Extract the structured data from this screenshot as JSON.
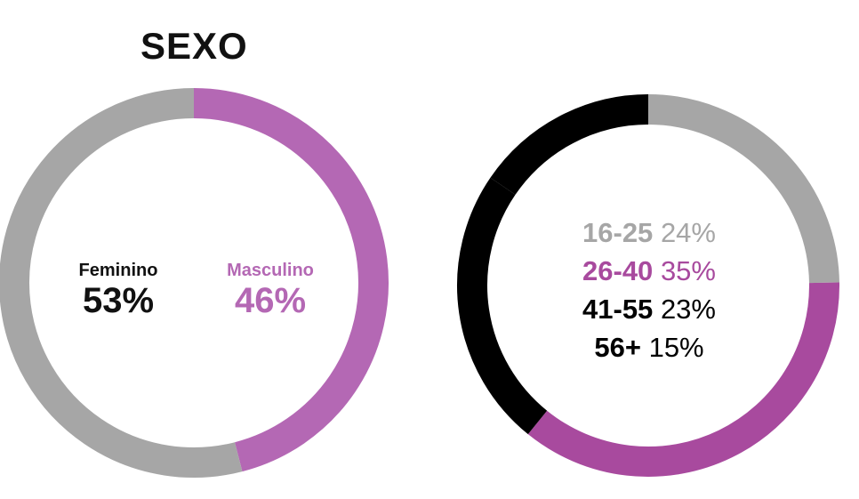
{
  "colors": {
    "gray": "#a6a6a6",
    "purple": "#b468b4",
    "purple_dark": "#a84a9e",
    "black": "#000000"
  },
  "chart_data": [
    {
      "type": "pie",
      "title": "SEXO",
      "slices": [
        {
          "label": "Feminino",
          "value": 53,
          "display": "53%",
          "color": "#a6a6a6",
          "text_color": "#111111"
        },
        {
          "label": "Masculino",
          "value": 46,
          "display": "46%",
          "color": "#b468b4",
          "text_color": "#b468b4"
        }
      ]
    },
    {
      "type": "pie",
      "title": "",
      "slices": [
        {
          "label": "16-25",
          "value": 24,
          "display": "24%",
          "color": "#a6a6a6",
          "text_color": "#a6a6a6"
        },
        {
          "label": "26-40",
          "value": 35,
          "display": "35%",
          "color": "#a84a9e",
          "text_color": "#a84a9e"
        },
        {
          "label": "41-55",
          "value": 23,
          "display": "23%",
          "color": "#000000",
          "text_color": "#000000"
        },
        {
          "label": "56+",
          "value": 15,
          "display": "15%",
          "color": "#000000",
          "text_color": "#000000"
        }
      ]
    }
  ]
}
